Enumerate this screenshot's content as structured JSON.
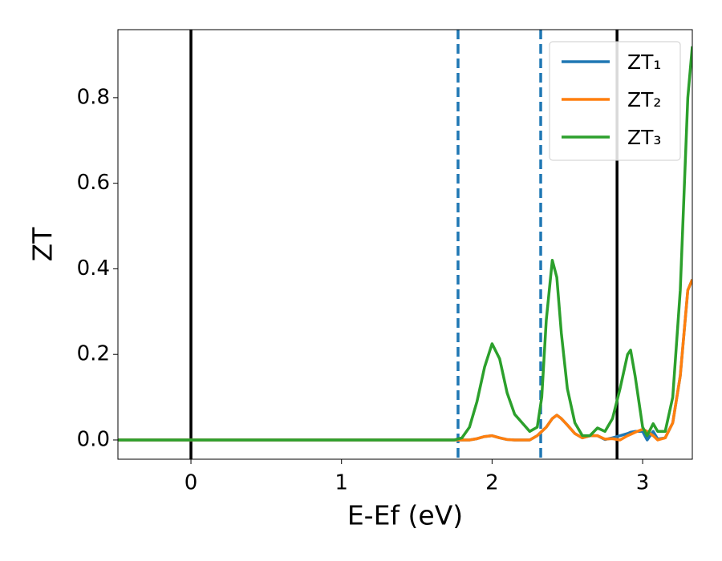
{
  "chart_data": {
    "type": "line",
    "x_label": "E-Ef (eV)",
    "y_label": "ZT",
    "x": [
      -0.485,
      1.75,
      1.8,
      1.85,
      1.9,
      1.95,
      2.0,
      2.05,
      2.1,
      2.15,
      2.2,
      2.25,
      2.3,
      2.33,
      2.36,
      2.4,
      2.43,
      2.46,
      2.5,
      2.55,
      2.6,
      2.65,
      2.7,
      2.75,
      2.8,
      2.85,
      2.9,
      2.92,
      2.95,
      3.0,
      3.03,
      3.07,
      3.1,
      3.15,
      3.2,
      3.25,
      3.3,
      3.33
    ],
    "series": [
      {
        "name": "ZT₁",
        "color": "#1f77b4",
        "values": [
          0,
          0,
          0,
          0,
          0.003,
          0.008,
          0.01,
          0.005,
          0.001,
          0,
          0,
          0,
          0.01,
          0.02,
          0.03,
          0.05,
          0.058,
          0.05,
          0.035,
          0.015,
          0.005,
          0.01,
          0.01,
          0.001,
          0.005,
          0.01,
          0.015,
          0.018,
          0.02,
          0.02,
          0,
          0.02,
          0.002,
          0.005,
          0.04,
          0.15,
          0.35,
          0.375
        ]
      },
      {
        "name": "ZT₂",
        "color": "#ff7f0e",
        "values": [
          0,
          0,
          0,
          0,
          0.003,
          0.008,
          0.01,
          0.005,
          0.001,
          0,
          0,
          0,
          0.01,
          0.02,
          0.03,
          0.05,
          0.058,
          0.05,
          0.035,
          0.015,
          0.005,
          0.01,
          0.01,
          0.002,
          0.003,
          0,
          0.01,
          0.013,
          0.018,
          0.025,
          0.02,
          0.01,
          0,
          0.005,
          0.04,
          0.15,
          0.35,
          0.375
        ]
      },
      {
        "name": "ZT₃",
        "color": "#2ca02c",
        "values": [
          0,
          0,
          0.005,
          0.03,
          0.09,
          0.17,
          0.225,
          0.19,
          0.11,
          0.06,
          0.04,
          0.02,
          0.03,
          0.1,
          0.28,
          0.42,
          0.38,
          0.25,
          0.12,
          0.04,
          0.01,
          0.01,
          0.028,
          0.02,
          0.05,
          0.12,
          0.2,
          0.21,
          0.15,
          0.03,
          0.01,
          0.038,
          0.02,
          0.02,
          0.1,
          0.35,
          0.8,
          0.92
        ]
      }
    ],
    "vlines": [
      {
        "x": 0,
        "color": "#000000",
        "style": "solid"
      },
      {
        "x": 2.83,
        "color": "#000000",
        "style": "solid"
      },
      {
        "x": 1.774,
        "color": "#1f77b4",
        "style": "dashed"
      },
      {
        "x": 2.323,
        "color": "#1f77b4",
        "style": "dashed"
      }
    ],
    "xlim": [
      -0.485,
      3.33
    ],
    "ylim": [
      -0.045,
      0.959
    ],
    "xticks": [
      0,
      1,
      2,
      3
    ],
    "yticks": [
      {
        "value": 0,
        "label": "0.0"
      },
      {
        "value": 0.2,
        "label": "0.2"
      },
      {
        "value": 0.4,
        "label": "0.4"
      },
      {
        "value": 0.6,
        "label": "0.6"
      },
      {
        "value": 0.8,
        "label": "0.8"
      }
    ],
    "legend": "upper right",
    "grid": false
  }
}
